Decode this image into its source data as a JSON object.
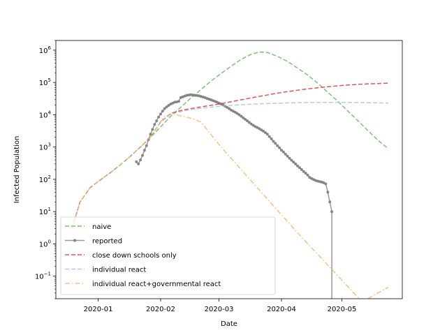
{
  "chart_data": {
    "type": "line",
    "title": "",
    "xlabel": "Date",
    "ylabel": "Infected Population",
    "x_axis": {
      "type": "date",
      "range": [
        "2019-12-11",
        "2020-05-31"
      ],
      "ticks": [
        "2020-01-01",
        "2020-02-01",
        "2020-03-01",
        "2020-04-01",
        "2020-05-01"
      ],
      "tick_labels": [
        "2020-01",
        "2020-02",
        "2020-03",
        "2020-04",
        "2020-05"
      ]
    },
    "y_axis": {
      "scale": "log",
      "range": [
        0.02,
        2000000
      ],
      "ticks": [
        0.1,
        1,
        10,
        100,
        1000,
        10000,
        100000,
        1000000
      ],
      "tick_labels": [
        {
          "base": "10",
          "exp": "−1"
        },
        {
          "base": "10",
          "exp": "0"
        },
        {
          "base": "10",
          "exp": "1"
        },
        {
          "base": "10",
          "exp": "2"
        },
        {
          "base": "10",
          "exp": "3"
        },
        {
          "base": "10",
          "exp": "4"
        },
        {
          "base": "10",
          "exp": "5"
        },
        {
          "base": "10",
          "exp": "6"
        }
      ]
    },
    "grid": false,
    "legend_position": "bottom-left",
    "series": [
      {
        "name": "naive",
        "color": "#4daf4a",
        "style": "dashed",
        "points": [
          [
            "2019-12-19",
            3
          ],
          [
            "2019-12-23",
            20
          ],
          [
            "2019-12-28",
            55
          ],
          [
            "2020-01-02",
            95
          ],
          [
            "2020-01-07",
            160
          ],
          [
            "2020-01-12",
            280
          ],
          [
            "2020-01-17",
            520
          ],
          [
            "2020-01-22",
            1000
          ],
          [
            "2020-01-27",
            2000
          ],
          [
            "2020-02-01",
            4200
          ],
          [
            "2020-02-06",
            9000
          ],
          [
            "2020-02-11",
            17000
          ],
          [
            "2020-02-16",
            33000
          ],
          [
            "2020-02-21",
            60000
          ],
          [
            "2020-02-26",
            110000
          ],
          [
            "2020-03-02",
            190000
          ],
          [
            "2020-03-07",
            320000
          ],
          [
            "2020-03-12",
            520000
          ],
          [
            "2020-03-17",
            750000
          ],
          [
            "2020-03-21",
            880000
          ],
          [
            "2020-03-25",
            850000
          ],
          [
            "2020-03-30",
            650000
          ],
          [
            "2020-04-04",
            450000
          ],
          [
            "2020-04-09",
            280000
          ],
          [
            "2020-04-14",
            170000
          ],
          [
            "2020-04-19",
            95000
          ],
          [
            "2020-04-24",
            50000
          ],
          [
            "2020-04-29",
            26000
          ],
          [
            "2020-05-04",
            13000
          ],
          [
            "2020-05-09",
            6500
          ],
          [
            "2020-05-14",
            3200
          ],
          [
            "2020-05-19",
            1600
          ],
          [
            "2020-05-24",
            900
          ]
        ]
      },
      {
        "name": "reported",
        "color": "#808080",
        "style": "solid-markers",
        "points": [
          [
            "2020-01-20",
            350
          ],
          [
            "2020-01-21",
            300
          ],
          [
            "2020-01-22",
            400
          ],
          [
            "2020-01-23",
            550
          ],
          [
            "2020-01-24",
            800
          ],
          [
            "2020-01-25",
            1100
          ],
          [
            "2020-01-26",
            1700
          ],
          [
            "2020-01-27",
            2500
          ],
          [
            "2020-01-28",
            3500
          ],
          [
            "2020-01-29",
            5000
          ],
          [
            "2020-01-30",
            6500
          ],
          [
            "2020-01-31",
            8500
          ],
          [
            "2020-02-01",
            10500
          ],
          [
            "2020-02-02",
            13000
          ],
          [
            "2020-02-03",
            15500
          ],
          [
            "2020-02-04",
            17500
          ],
          [
            "2020-02-05",
            19500
          ],
          [
            "2020-02-06",
            21500
          ],
          [
            "2020-02-07",
            23000
          ],
          [
            "2020-02-08",
            24500
          ],
          [
            "2020-02-09",
            25000
          ],
          [
            "2020-02-10",
            26000
          ],
          [
            "2020-02-11",
            34000
          ],
          [
            "2020-02-12",
            36000
          ],
          [
            "2020-02-13",
            38000
          ],
          [
            "2020-02-14",
            40000
          ],
          [
            "2020-02-15",
            41000
          ],
          [
            "2020-02-16",
            41500
          ],
          [
            "2020-02-17",
            41000
          ],
          [
            "2020-02-18",
            40000
          ],
          [
            "2020-02-19",
            39500
          ],
          [
            "2020-02-20",
            38500
          ],
          [
            "2020-02-21",
            37000
          ],
          [
            "2020-02-22",
            35500
          ],
          [
            "2020-02-23",
            34000
          ],
          [
            "2020-02-24",
            32000
          ],
          [
            "2020-02-25",
            30500
          ],
          [
            "2020-02-26",
            29000
          ],
          [
            "2020-02-27",
            27500
          ],
          [
            "2020-02-28",
            26000
          ],
          [
            "2020-02-29",
            24500
          ],
          [
            "2020-03-01",
            23000
          ],
          [
            "2020-03-02",
            21500
          ],
          [
            "2020-03-03",
            20000
          ],
          [
            "2020-03-04",
            18500
          ],
          [
            "2020-03-05",
            17000
          ],
          [
            "2020-03-06",
            15500
          ],
          [
            "2020-03-07",
            14000
          ],
          [
            "2020-03-08",
            13000
          ],
          [
            "2020-03-09",
            12000
          ],
          [
            "2020-03-10",
            11000
          ],
          [
            "2020-03-11",
            10000
          ],
          [
            "2020-03-12",
            9000
          ],
          [
            "2020-03-13",
            8000
          ],
          [
            "2020-03-14",
            7200
          ],
          [
            "2020-03-15",
            6500
          ],
          [
            "2020-03-16",
            5800
          ],
          [
            "2020-03-17",
            5200
          ],
          [
            "2020-03-18",
            4700
          ],
          [
            "2020-03-19",
            4300
          ],
          [
            "2020-03-20",
            4000
          ],
          [
            "2020-03-21",
            3700
          ],
          [
            "2020-03-22",
            3400
          ],
          [
            "2020-03-23",
            3100
          ],
          [
            "2020-03-24",
            2800
          ],
          [
            "2020-03-25",
            2500
          ],
          [
            "2020-03-26",
            2100
          ],
          [
            "2020-03-27",
            1800
          ],
          [
            "2020-03-28",
            1500
          ],
          [
            "2020-03-29",
            1300
          ],
          [
            "2020-03-30",
            1100
          ],
          [
            "2020-03-31",
            950
          ],
          [
            "2020-04-01",
            800
          ],
          [
            "2020-04-02",
            700
          ],
          [
            "2020-04-03",
            600
          ],
          [
            "2020-04-04",
            520
          ],
          [
            "2020-04-05",
            450
          ],
          [
            "2020-04-06",
            390
          ],
          [
            "2020-04-07",
            340
          ],
          [
            "2020-04-08",
            300
          ],
          [
            "2020-04-09",
            260
          ],
          [
            "2020-04-10",
            230
          ],
          [
            "2020-04-11",
            200
          ],
          [
            "2020-04-12",
            175
          ],
          [
            "2020-04-13",
            155
          ],
          [
            "2020-04-14",
            135
          ],
          [
            "2020-04-15",
            115
          ],
          [
            "2020-04-16",
            105
          ],
          [
            "2020-04-17",
            98
          ],
          [
            "2020-04-18",
            92
          ],
          [
            "2020-04-19",
            88
          ],
          [
            "2020-04-20",
            85
          ],
          [
            "2020-04-21",
            82
          ],
          [
            "2020-04-22",
            78
          ],
          [
            "2020-04-23",
            72
          ],
          [
            "2020-04-24",
            40
          ],
          [
            "2020-04-25",
            20
          ],
          [
            "2020-04-26",
            10
          ]
        ]
      },
      {
        "name": "close down schools only",
        "color": "#e41a1c",
        "style": "dashed",
        "points": [
          [
            "2019-12-19",
            3
          ],
          [
            "2019-12-23",
            20
          ],
          [
            "2019-12-28",
            55
          ],
          [
            "2020-01-02",
            95
          ],
          [
            "2020-01-07",
            160
          ],
          [
            "2020-01-12",
            280
          ],
          [
            "2020-01-17",
            520
          ],
          [
            "2020-01-22",
            1000
          ],
          [
            "2020-01-27",
            2000
          ],
          [
            "2020-02-01",
            6000
          ],
          [
            "2020-02-06",
            11000
          ],
          [
            "2020-02-11",
            13500
          ],
          [
            "2020-02-16",
            15500
          ],
          [
            "2020-02-21",
            17500
          ],
          [
            "2020-03-02",
            22000
          ],
          [
            "2020-03-12",
            29000
          ],
          [
            "2020-03-22",
            38000
          ],
          [
            "2020-04-01",
            49000
          ],
          [
            "2020-04-11",
            60000
          ],
          [
            "2020-04-21",
            71000
          ],
          [
            "2020-05-01",
            81000
          ],
          [
            "2020-05-11",
            89000
          ],
          [
            "2020-05-24",
            95000
          ]
        ]
      },
      {
        "name": "individual react",
        "color": "#9ebcda",
        "style": "dashed",
        "points": [
          [
            "2019-12-19",
            3
          ],
          [
            "2019-12-23",
            20
          ],
          [
            "2019-12-28",
            55
          ],
          [
            "2020-01-02",
            95
          ],
          [
            "2020-01-07",
            160
          ],
          [
            "2020-01-12",
            280
          ],
          [
            "2020-01-17",
            520
          ],
          [
            "2020-01-22",
            1000
          ],
          [
            "2020-01-27",
            2000
          ],
          [
            "2020-02-01",
            6000
          ],
          [
            "2020-02-06",
            10500
          ],
          [
            "2020-02-11",
            12500
          ],
          [
            "2020-02-16",
            14500
          ],
          [
            "2020-02-21",
            16000
          ],
          [
            "2020-03-02",
            18500
          ],
          [
            "2020-03-12",
            20500
          ],
          [
            "2020-03-22",
            22000
          ],
          [
            "2020-04-01",
            23000
          ],
          [
            "2020-04-11",
            23800
          ],
          [
            "2020-04-21",
            24200
          ],
          [
            "2020-05-01",
            24200
          ],
          [
            "2020-05-11",
            23800
          ],
          [
            "2020-05-24",
            23000
          ]
        ]
      },
      {
        "name": "individual react+governmental react",
        "color": "#fdb462",
        "style": "dashdot",
        "points": [
          [
            "2019-12-19",
            3
          ],
          [
            "2019-12-23",
            20
          ],
          [
            "2019-12-28",
            55
          ],
          [
            "2020-01-02",
            95
          ],
          [
            "2020-01-07",
            160
          ],
          [
            "2020-01-12",
            280
          ],
          [
            "2020-01-17",
            520
          ],
          [
            "2020-01-22",
            1000
          ],
          [
            "2020-01-27",
            2000
          ],
          [
            "2020-02-01",
            6000
          ],
          [
            "2020-02-03",
            9000
          ],
          [
            "2020-02-07",
            10500
          ],
          [
            "2020-02-12",
            9000
          ],
          [
            "2020-02-17",
            7500
          ],
          [
            "2020-02-21",
            6000
          ],
          [
            "2020-03-02",
            1000
          ],
          [
            "2020-03-12",
            200
          ],
          [
            "2020-03-22",
            40
          ],
          [
            "2020-04-01",
            8
          ],
          [
            "2020-04-11",
            1.6
          ],
          [
            "2020-04-21",
            0.35
          ],
          [
            "2020-05-01",
            0.075
          ],
          [
            "2020-05-11",
            0.016
          ],
          [
            "2020-05-24",
            0.045
          ]
        ]
      }
    ]
  }
}
